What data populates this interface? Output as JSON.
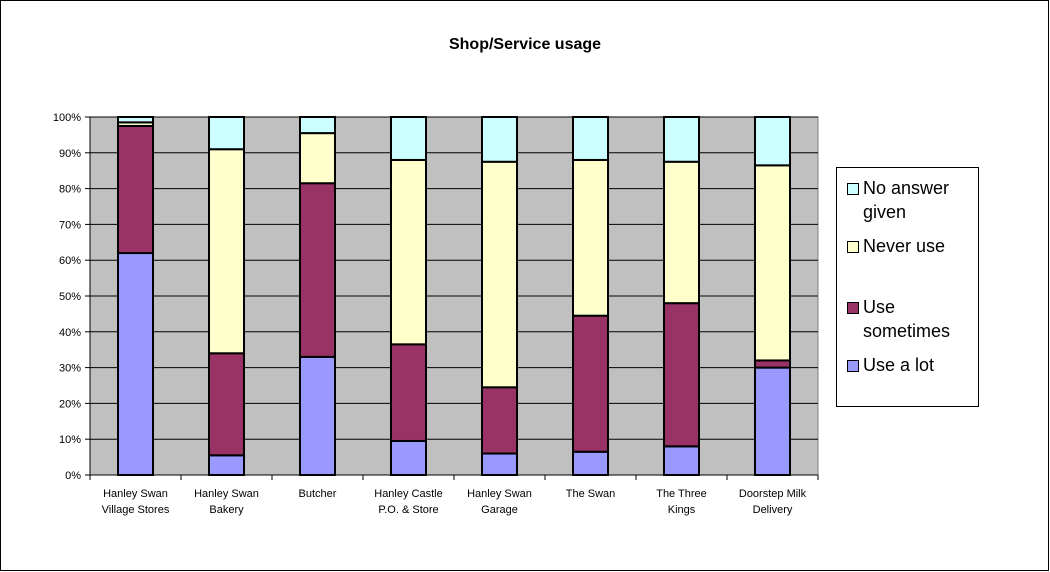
{
  "chart_data": {
    "type": "bar",
    "stacked": true,
    "title": "Shop/Service usage",
    "xlabel": "",
    "ylabel": "",
    "ylim": [
      0,
      100
    ],
    "yticks": [
      "0%",
      "10%",
      "20%",
      "30%",
      "40%",
      "50%",
      "60%",
      "70%",
      "80%",
      "90%",
      "100%"
    ],
    "categories": [
      "Hanley Swan\nVillage Stores",
      "Hanley Swan\nBakery",
      "Butcher",
      "Hanley Castle\nP.O. & Store",
      "Hanley Swan\nGarage",
      "The Swan",
      "The Three\nKings",
      "Doorstep Milk\nDelivery"
    ],
    "series": [
      {
        "name": "Use a lot",
        "color": "#9999ff",
        "values": [
          62,
          5.5,
          33,
          9.5,
          6,
          6.5,
          8,
          30
        ]
      },
      {
        "name": "Use sometimes",
        "color": "#993366",
        "values": [
          35.5,
          28.5,
          48.5,
          27,
          18.5,
          38,
          40,
          2
        ]
      },
      {
        "name": "Never use",
        "color": "#ffffcc",
        "values": [
          1,
          57,
          14,
          51.5,
          63,
          43.5,
          39.5,
          54.5
        ]
      },
      {
        "name": "No answer given",
        "color": "#ccffff",
        "values": [
          1.5,
          9,
          4.5,
          12,
          12.5,
          12,
          12.5,
          13.5
        ]
      }
    ],
    "legend": {
      "position": "right",
      "order": [
        "No answer\ngiven",
        "Never use",
        "Use\nsometimes",
        "Use a lot"
      ]
    },
    "grid": true,
    "plot_background": "#c0c0c0"
  }
}
